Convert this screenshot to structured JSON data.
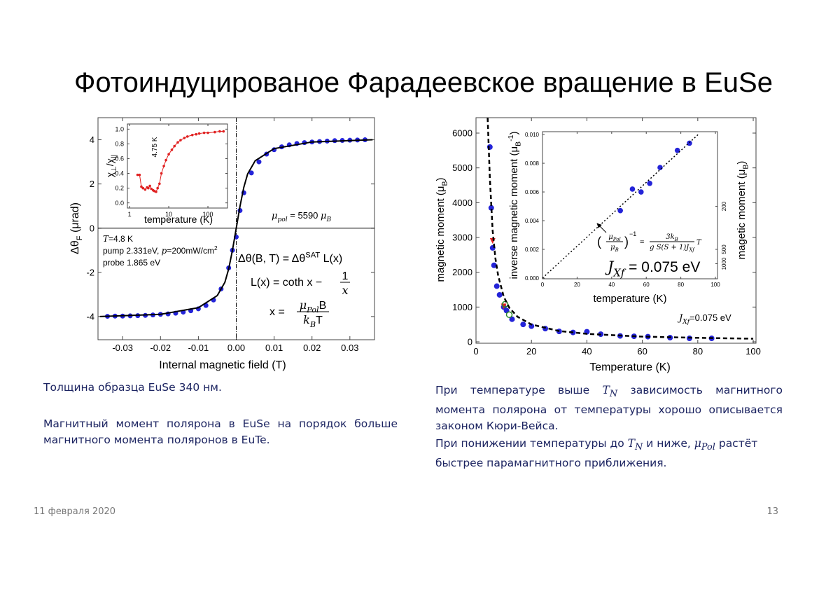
{
  "title": "Фотоиндуцированое Фарадеевское вращение в EuSe",
  "figures": [
    {
      "main": {
        "type": "scatter",
        "xlim": [
          -0.0365,
          0.0365
        ],
        "ylim": [
          -5.05,
          5.0
        ],
        "xticks": [
          -0.03,
          -0.02,
          -0.01,
          {
            "value": 0,
            "label": "0.00"
          },
          0.01,
          0.02,
          0.03
        ],
        "yticks": [
          -4,
          -2,
          0,
          2,
          4
        ],
        "zero_lines": true,
        "xlabel": "Internal magnetic field (T)",
        "ylabel": {
          "main": "Δθ",
          "sub": "F",
          "unit": " (μrad)"
        },
        "series": [
          {
            "mode": "markers",
            "marker": "circle",
            "color": "#2424d8",
            "x": [
              -0.034,
              -0.032,
              -0.03,
              -0.028,
              -0.026,
              -0.024,
              -0.022,
              -0.02,
              -0.018,
              -0.016,
              -0.014,
              -0.012,
              -0.01,
              -0.008,
              -0.006,
              -0.004,
              -0.002,
              -0.001,
              0,
              0.001,
              0.002,
              0.004,
              0.006,
              0.008,
              0.01,
              0.012,
              0.014,
              0.016,
              0.018,
              0.02,
              0.022,
              0.024,
              0.026,
              0.028,
              0.03,
              0.032,
              0.034
            ],
            "values": [
              -3.99,
              -3.98,
              -3.98,
              -3.97,
              -3.96,
              -3.95,
              -3.93,
              -3.9,
              -3.88,
              -3.85,
              -3.8,
              -3.74,
              -3.65,
              -3.5,
              -3.25,
              -2.75,
              -1.8,
              -1.0,
              -0.4,
              0.8,
              1.6,
              2.5,
              3.0,
              3.35,
              3.55,
              3.68,
              3.77,
              3.83,
              3.87,
              3.9,
              3.92,
              3.94,
              3.96,
              3.97,
              3.98,
              3.99,
              4.0
            ]
          },
          {
            "mode": "line",
            "color": "#000000",
            "x": [
              -0.036,
              -0.02,
              -0.01,
              -0.005,
              -0.003,
              -0.002,
              -0.001,
              0,
              0.001,
              0.002,
              0.003,
              0.005,
              0.01,
              0.02,
              0.036
            ],
            "values": [
              -4.0,
              -3.9,
              -3.6,
              -3.05,
              -2.45,
              -1.85,
              -1.0,
              0,
              1.0,
              1.85,
              2.45,
              3.05,
              3.6,
              3.9,
              4.0
            ]
          }
        ],
        "annotations": {
          "temperature": {
            "sym": "T",
            "text": "=4.8 K"
          },
          "pump": {
            "text": "pump 2.331eV, ",
            "sym": "p",
            "rest": "=200mW/cm",
            "sup": "2"
          },
          "probe": "probe 1.865 eV",
          "moment": {
            "sym": "μ",
            "sub": "pol",
            "text": " = 5590 ",
            "unit": "μ",
            "unit_sub": "B"
          }
        },
        "equations": {
          "eq1": {
            "a": "Δθ(B, T) = Δθ",
            "sup": "SAT",
            "b": " L(x)"
          },
          "eq2": {
            "a": "L(x) = coth x − ",
            "num": "1",
            "den": "x"
          },
          "eq3": {
            "a": "x = ",
            "num": "μ",
            "num_sub": "Pol",
            "num_b": "B",
            "den": "k",
            "den_sub": "B",
            "den_b": "T"
          }
        }
      },
      "inset": {
        "type": "line",
        "xscale": "log",
        "xlim": [
          0.88,
          316
        ],
        "ylim": [
          -0.07,
          1.07
        ],
        "xticks": [
          1,
          10,
          100
        ],
        "yticks": [
          {
            "value": 0,
            "label": "0.0"
          },
          0.2,
          0.4,
          0.6,
          0.8,
          {
            "value": 1,
            "label": "1.0"
          }
        ],
        "xlabel": "temperature (K)",
        "ylabel": {
          "a": "χ",
          "a_sub": "⊥",
          "b": "/χ",
          "b_sub": "||"
        },
        "annotation": "4.75 K",
        "series": [
          {
            "mode": "line-markers",
            "marker": "circle",
            "color": "#e02020",
            "x": [
              1.6,
              1.8,
              2,
              2.2,
              2.5,
              2.8,
              3,
              3.3,
              3.6,
              4,
              4.3,
              4.75,
              5.2,
              5.8,
              6.5,
              7.5,
              8.5,
              10,
              12,
              14,
              17,
              20,
              25,
              30,
              40,
              50,
              60,
              80,
              100,
              150,
              200,
              250
            ],
            "values": [
              0.38,
              0.38,
              0.22,
              0.2,
              0.18,
              0.21,
              0.2,
              0.23,
              0.19,
              0.17,
              0.16,
              0.15,
              0.2,
              0.26,
              0.4,
              0.5,
              0.58,
              0.66,
              0.72,
              0.77,
              0.82,
              0.85,
              0.88,
              0.9,
              0.92,
              0.93,
              0.94,
              0.95,
              0.95,
              0.96,
              0.97,
              0.97
            ]
          }
        ]
      }
    },
    {
      "main": {
        "type": "scatter",
        "xlim": [
          0,
          101
        ],
        "ylim": [
          -40,
          6443
        ],
        "xticks": [
          0,
          20,
          40,
          60,
          80,
          100
        ],
        "yticks": [
          0,
          1000,
          2000,
          3000,
          4000,
          5000,
          6000
        ],
        "xlabel": "Temperature (K)",
        "ylabel": {
          "main": "magnetic moment (μ",
          "sub": "B",
          "unit": ")"
        },
        "annotation": {
          "sym": "J",
          "sub": "Xf",
          "text": "=0.075 eV"
        },
        "series": [
          {
            "mode": "markers",
            "marker": "circle",
            "color": "#2424d8",
            "x": [
              5,
              5.5,
              6,
              6.5,
              7.5,
              8.5,
              10,
              11,
              13,
              17,
              20,
              25,
              30,
              35,
              40,
              45,
              52,
              57,
              62,
              70,
              77,
              85
            ],
            "values": [
              5600,
              3850,
              2700,
              2200,
              1600,
              1350,
              1000,
              900,
              650,
              500,
              450,
              380,
              300,
              270,
              290,
              220,
              170,
              160,
              150,
              120,
              100,
              100
            ]
          },
          {
            "mode": "markers",
            "marker": "triangle-down",
            "color": "#e02020",
            "x": [
              6,
              10
            ],
            "values": [
              2900,
              1020
            ]
          },
          {
            "mode": "markers",
            "marker": "open-circle",
            "color": "#2a8a2a",
            "x": [
              10.5,
              12
            ],
            "values": [
              1080,
              780
            ]
          },
          {
            "mode": "line",
            "dash": "6 4",
            "color": "#000000",
            "x": [
              4.2,
              5,
              6,
              7,
              8,
              10,
              12,
              15,
              20,
              30,
              40,
              60,
              80,
              100
            ],
            "values": [
              6440,
              4700,
              3200,
              2400,
              1900,
              1300,
              980,
              720,
              500,
              310,
              230,
              150,
              115,
              90
            ]
          }
        ]
      },
      "inset": {
        "type": "scatter",
        "xlim": [
          0,
          101.2
        ],
        "ylim": [
          -5e-05,
          0.0102
        ],
        "xticks": [
          0,
          20,
          40,
          60,
          80,
          100
        ],
        "yticks": [
          {
            "value": 0,
            "label": "0.000"
          },
          0.002,
          0.004,
          0.006,
          0.008,
          {
            "value": 0.01,
            "label": "0.010"
          }
        ],
        "y2scale": "reciprocal",
        "y2ticks": [
          200,
          500,
          1000
        ],
        "xlabel": "temperature (K)",
        "ylabel": {
          "main": "inverse magnetic moment (μ",
          "sub": "B",
          "sup": "-1",
          "unit": ")"
        },
        "y2label": {
          "main": "magetic moment (μ",
          "sub": "B",
          "unit": ")"
        },
        "formula": {
          "lp": "(",
          "num": "μ",
          "num_sub": "Pol",
          "den": "μ",
          "den_sub": "B",
          "rp": ")",
          "exp": "−1",
          "eq": "=",
          "num2": "3k",
          "num2_sub": "B",
          "den2": "g S(S + 1)J",
          "den2_sub": "Xf",
          "tail": "T"
        },
        "result": {
          "sym": "J",
          "sub": "Xf",
          "text": " = 0.075 eV"
        },
        "series": [
          {
            "mode": "markers",
            "marker": "circle",
            "color": "#2424d8",
            "x": [
              45,
              52,
              57,
              62,
              68,
              78,
              85
            ],
            "values": [
              0.0047,
              0.0062,
              0.006,
              0.0066,
              0.0077,
              0.0089,
              0.0094
            ]
          },
          {
            "mode": "line",
            "dash": "2 3",
            "color": "#000000",
            "x": [
              0,
              90
            ],
            "values": [
              0,
              0.01
            ]
          }
        ]
      }
    }
  ],
  "notes_left": [
    "Толщина образца EuSe 340 нм.",
    "Магнитный момент полярона в EuSe на порядок больше магнитного момента поляронов в EuTe."
  ],
  "notes_right": [
    [
      "При температуре выше ",
      "T",
      "N",
      " зависимость магнитного момента полярона от температуры хорошо описывается законом Кюри-Вейса."
    ],
    [
      "При понижении температуры до ",
      "T",
      "N",
      " и ниже, ",
      "μ",
      "Pol",
      " растёт быстрее парамагнитного приближения."
    ]
  ],
  "footer": {
    "date": "11 февраля 2020",
    "page": 13
  }
}
